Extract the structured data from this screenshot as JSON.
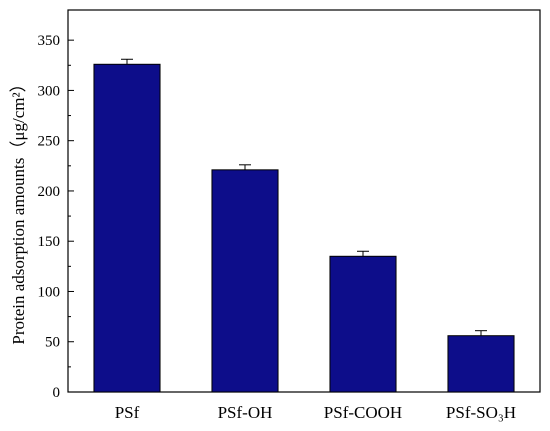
{
  "chart_data": {
    "type": "bar",
    "title": "",
    "xlabel": "",
    "ylabel": "Protein adsorption amounts（μg/cm²）",
    "categories": [
      "PSf",
      "PSf-OH",
      "PSf-COOH",
      "PSf-SO₃H"
    ],
    "values": [
      326,
      221,
      135,
      56
    ],
    "error": [
      5,
      5,
      5,
      5
    ],
    "yticks": [
      0,
      50,
      100,
      150,
      200,
      250,
      300,
      350
    ],
    "ylim": [
      0,
      380
    ],
    "grid": false,
    "legend": "none"
  },
  "colors": {
    "bar_fill": "#0d0d8a",
    "bar_stroke": "#000000",
    "axis": "#000000"
  }
}
